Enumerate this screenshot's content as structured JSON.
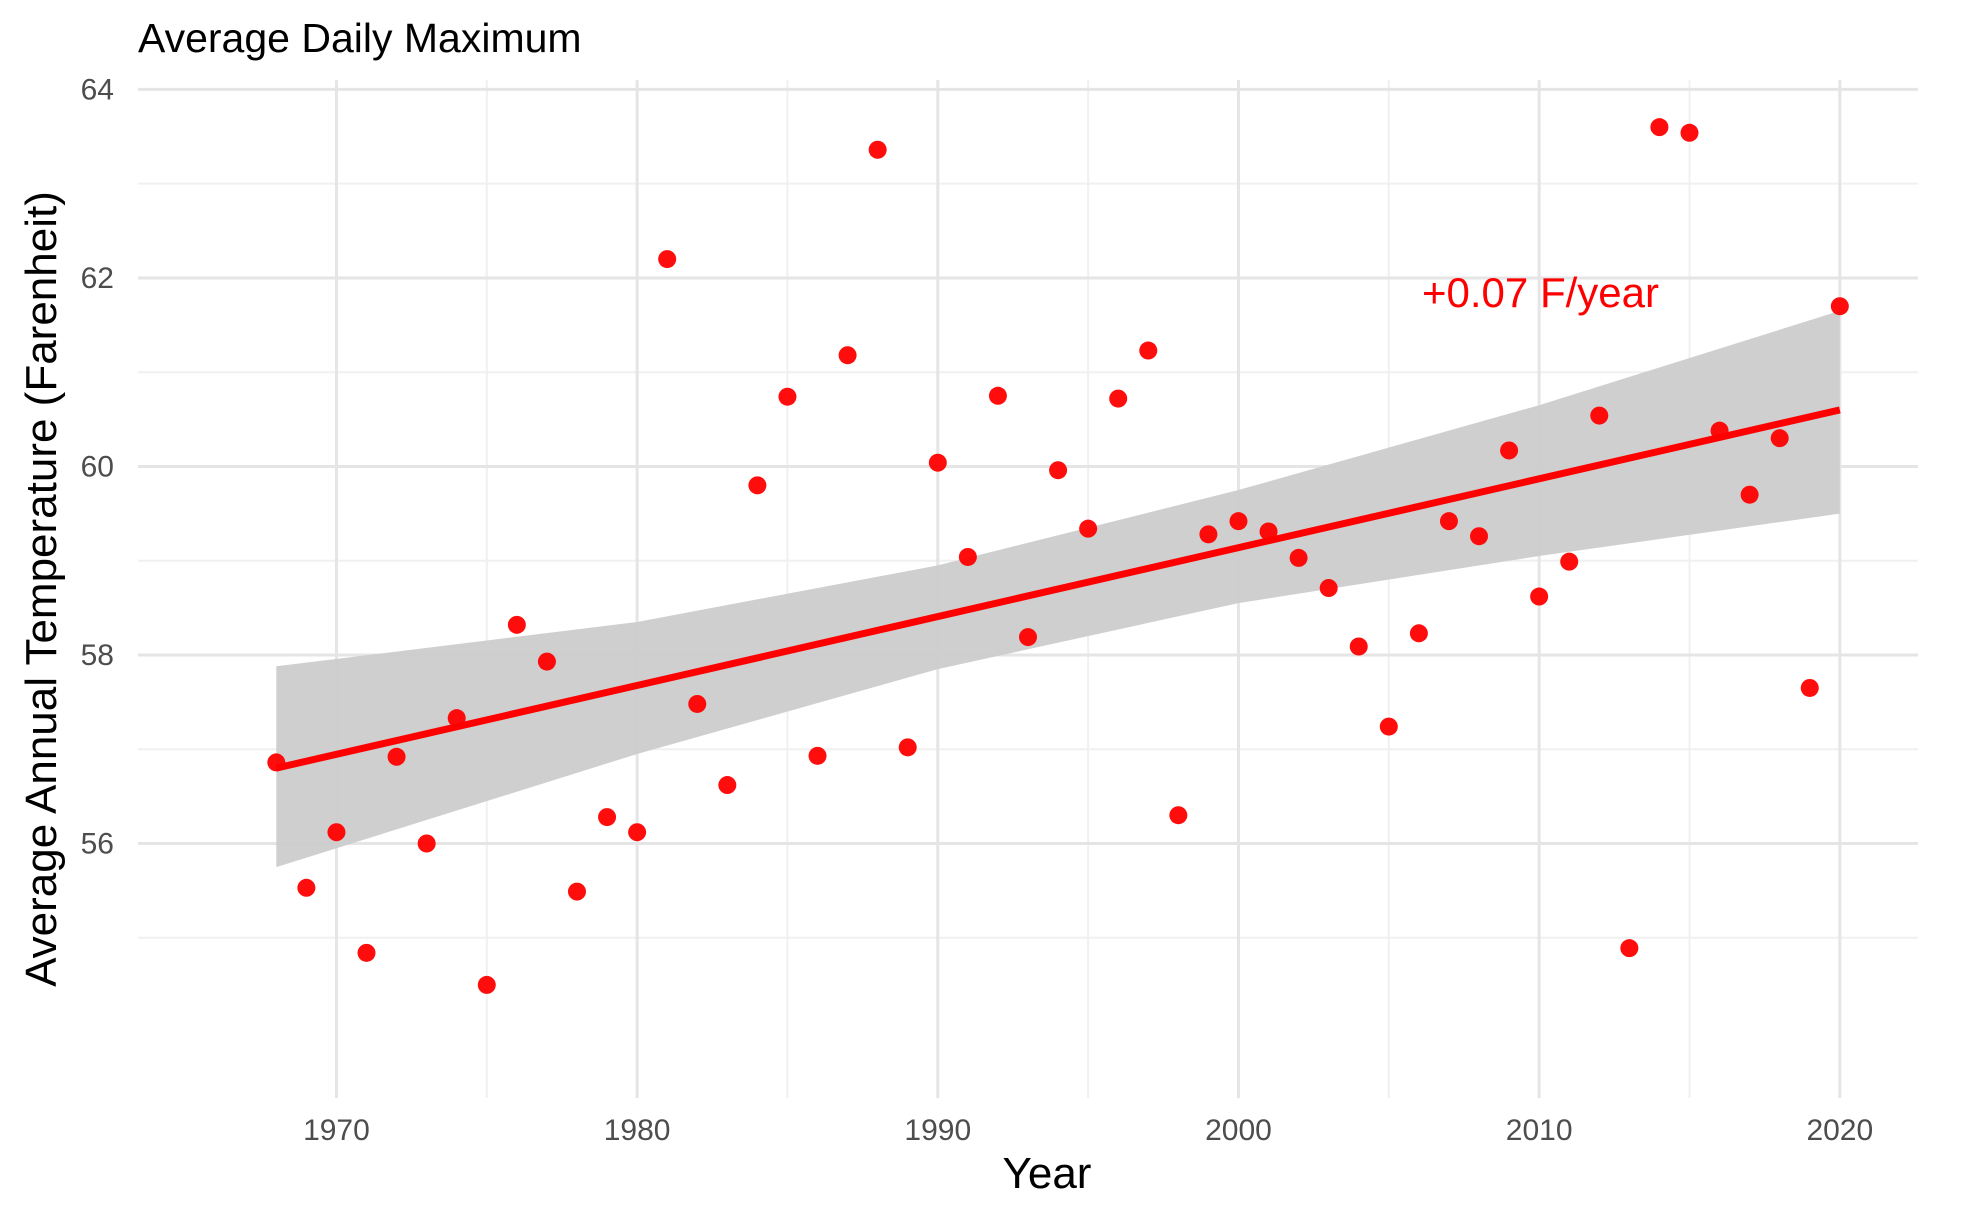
{
  "chart_data": {
    "type": "scatter",
    "title": "Average Daily Maximum",
    "xlabel": "Year",
    "ylabel": "Average Annual Temperature (Farenheit)",
    "xlim": [
      1963.4,
      2022.6
    ],
    "ylim": [
      53.3,
      64.1
    ],
    "x_ticks": [
      1970,
      1980,
      1990,
      2000,
      2010,
      2020
    ],
    "y_ticks": [
      56,
      58,
      60,
      62,
      64
    ],
    "grid": true,
    "legend": "none",
    "colors": {
      "points": "#ff0000",
      "trend": "#ff0000",
      "band": "#cccccc",
      "grid_major": "#e5e5e5",
      "grid_minor": "#f0f0f0"
    },
    "series": [
      {
        "x": [
          1968,
          1969,
          1970,
          1971,
          1972,
          1973,
          1974,
          1975,
          1976,
          1977,
          1978,
          1979,
          1980,
          1981,
          1982,
          1983,
          1984,
          1985,
          1986,
          1987,
          1988,
          1989,
          1990,
          1991,
          1992,
          1993,
          1994,
          1995,
          1996,
          1997,
          1998,
          1999,
          2000,
          2001,
          2002,
          2003,
          2004,
          2005,
          2006,
          2007,
          2008,
          2009,
          2010,
          2011,
          2012,
          2013,
          2014,
          2015,
          2016,
          2017,
          2018,
          2019,
          2020
        ],
        "y": [
          56.86,
          55.53,
          56.12,
          54.84,
          56.92,
          56.0,
          57.33,
          54.5,
          58.32,
          57.93,
          55.49,
          56.28,
          56.12,
          62.2,
          57.48,
          56.62,
          59.8,
          60.74,
          56.93,
          61.18,
          63.36,
          57.02,
          60.04,
          59.04,
          60.75,
          58.19,
          59.96,
          59.34,
          60.72,
          61.23,
          56.3,
          59.28,
          59.42,
          59.31,
          59.03,
          58.71,
          58.09,
          57.24,
          58.23,
          59.42,
          59.26,
          60.17,
          58.62,
          58.99,
          60.54,
          54.89,
          63.6,
          63.54,
          60.38,
          59.7,
          60.3,
          57.65,
          61.7
        ]
      }
    ],
    "trend": {
      "x": [
        1968,
        2020
      ],
      "y": [
        56.8,
        60.6
      ],
      "slope_label": "+0.07 F/year"
    },
    "confidence_band": {
      "x": [
        1968,
        1980,
        1990,
        2000,
        2010,
        2020
      ],
      "lower": [
        55.75,
        56.95,
        57.85,
        58.55,
        59.05,
        59.5
      ],
      "upper": [
        57.88,
        58.35,
        58.95,
        59.75,
        60.65,
        61.65
      ]
    }
  }
}
